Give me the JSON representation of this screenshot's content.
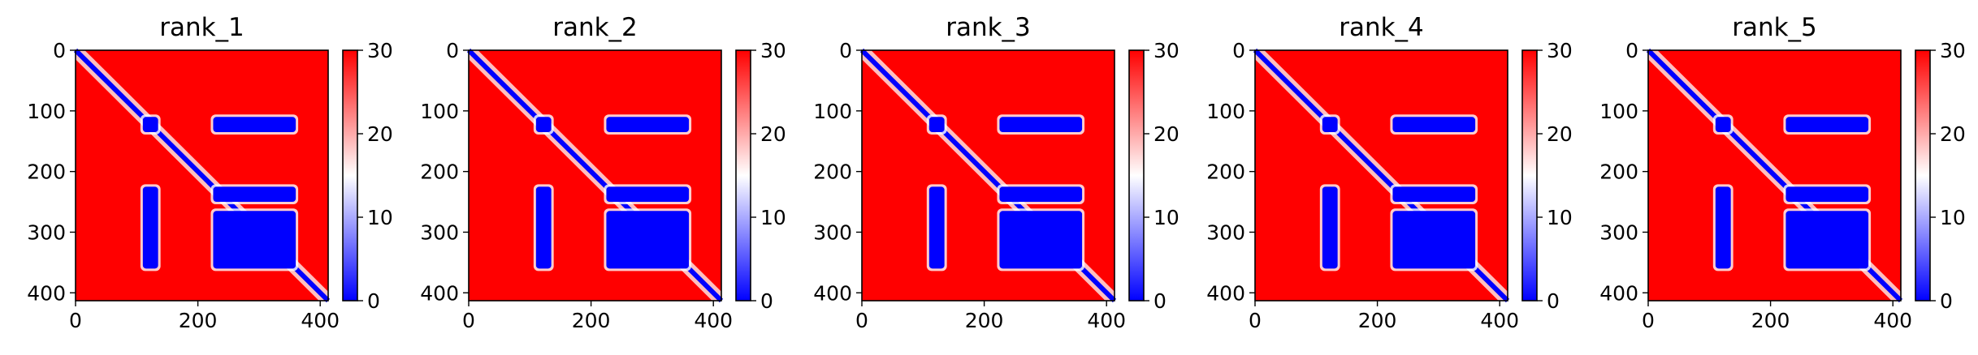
{
  "chart_data": [
    {
      "type": "heatmap",
      "title": "rank_1",
      "xlim": [
        0,
        413
      ],
      "ylim": [
        413,
        0
      ],
      "xticks": [
        0,
        200,
        400
      ],
      "yticks": [
        0,
        100,
        200,
        300,
        400
      ],
      "colorbar": {
        "min": 0,
        "max": 30,
        "ticks": [
          0,
          10,
          20,
          30
        ],
        "colors": [
          "#0000ff",
          "#ffffff",
          "#ff0000"
        ]
      },
      "low_value_regions": [
        {
          "x": [
            0,
            413
          ],
          "y": [
            0,
            413
          ],
          "kind": "diagonal"
        },
        {
          "x": [
            110,
            135
          ],
          "y": [
            110,
            135
          ]
        },
        {
          "x": [
            225,
            360
          ],
          "y": [
            110,
            135
          ]
        },
        {
          "x": [
            110,
            135
          ],
          "y": [
            225,
            360
          ]
        },
        {
          "x": [
            225,
            360
          ],
          "y": [
            225,
            250
          ]
        },
        {
          "x": [
            225,
            360
          ],
          "y": [
            265,
            360
          ]
        }
      ]
    },
    {
      "type": "heatmap",
      "title": "rank_2",
      "xlim": [
        0,
        413
      ],
      "ylim": [
        413,
        0
      ],
      "xticks": [
        0,
        200,
        400
      ],
      "yticks": [
        0,
        100,
        200,
        300,
        400
      ],
      "colorbar": {
        "min": 0,
        "max": 30,
        "ticks": [
          0,
          10,
          20,
          30
        ],
        "colors": [
          "#0000ff",
          "#ffffff",
          "#ff0000"
        ]
      },
      "low_value_regions": [
        {
          "x": [
            0,
            413
          ],
          "y": [
            0,
            413
          ],
          "kind": "diagonal"
        },
        {
          "x": [
            110,
            135
          ],
          "y": [
            110,
            135
          ]
        },
        {
          "x": [
            225,
            360
          ],
          "y": [
            110,
            135
          ]
        },
        {
          "x": [
            110,
            135
          ],
          "y": [
            225,
            360
          ]
        },
        {
          "x": [
            225,
            360
          ],
          "y": [
            225,
            250
          ]
        },
        {
          "x": [
            225,
            360
          ],
          "y": [
            265,
            360
          ]
        }
      ]
    },
    {
      "type": "heatmap",
      "title": "rank_3",
      "xlim": [
        0,
        413
      ],
      "ylim": [
        413,
        0
      ],
      "xticks": [
        0,
        200,
        400
      ],
      "yticks": [
        0,
        100,
        200,
        300,
        400
      ],
      "colorbar": {
        "min": 0,
        "max": 30,
        "ticks": [
          0,
          10,
          20,
          30
        ],
        "colors": [
          "#0000ff",
          "#ffffff",
          "#ff0000"
        ]
      },
      "low_value_regions": [
        {
          "x": [
            0,
            413
          ],
          "y": [
            0,
            413
          ],
          "kind": "diagonal"
        },
        {
          "x": [
            110,
            135
          ],
          "y": [
            110,
            135
          ]
        },
        {
          "x": [
            225,
            360
          ],
          "y": [
            110,
            135
          ]
        },
        {
          "x": [
            110,
            135
          ],
          "y": [
            225,
            360
          ]
        },
        {
          "x": [
            225,
            360
          ],
          "y": [
            225,
            250
          ]
        },
        {
          "x": [
            225,
            360
          ],
          "y": [
            265,
            360
          ]
        }
      ]
    },
    {
      "type": "heatmap",
      "title": "rank_4",
      "xlim": [
        0,
        413
      ],
      "ylim": [
        413,
        0
      ],
      "xticks": [
        0,
        200,
        400
      ],
      "yticks": [
        0,
        100,
        200,
        300,
        400
      ],
      "colorbar": {
        "min": 0,
        "max": 30,
        "ticks": [
          0,
          10,
          20,
          30
        ],
        "colors": [
          "#0000ff",
          "#ffffff",
          "#ff0000"
        ]
      },
      "low_value_regions": [
        {
          "x": [
            0,
            413
          ],
          "y": [
            0,
            413
          ],
          "kind": "diagonal"
        },
        {
          "x": [
            110,
            135
          ],
          "y": [
            110,
            135
          ]
        },
        {
          "x": [
            225,
            360
          ],
          "y": [
            110,
            135
          ]
        },
        {
          "x": [
            110,
            135
          ],
          "y": [
            225,
            360
          ]
        },
        {
          "x": [
            225,
            360
          ],
          "y": [
            225,
            250
          ]
        },
        {
          "x": [
            225,
            360
          ],
          "y": [
            265,
            360
          ]
        }
      ]
    },
    {
      "type": "heatmap",
      "title": "rank_5",
      "xlim": [
        0,
        413
      ],
      "ylim": [
        413,
        0
      ],
      "xticks": [
        0,
        200,
        400
      ],
      "yticks": [
        0,
        100,
        200,
        300,
        400
      ],
      "colorbar": {
        "min": 0,
        "max": 30,
        "ticks": [
          0,
          10,
          20,
          30
        ],
        "colors": [
          "#0000ff",
          "#ffffff",
          "#ff0000"
        ]
      },
      "low_value_regions": [
        {
          "x": [
            0,
            413
          ],
          "y": [
            0,
            413
          ],
          "kind": "diagonal"
        },
        {
          "x": [
            110,
            135
          ],
          "y": [
            110,
            135
          ]
        },
        {
          "x": [
            225,
            360
          ],
          "y": [
            110,
            135
          ]
        },
        {
          "x": [
            110,
            135
          ],
          "y": [
            225,
            360
          ]
        },
        {
          "x": [
            225,
            360
          ],
          "y": [
            225,
            250
          ]
        },
        {
          "x": [
            225,
            360
          ],
          "y": [
            265,
            360
          ]
        }
      ]
    }
  ]
}
